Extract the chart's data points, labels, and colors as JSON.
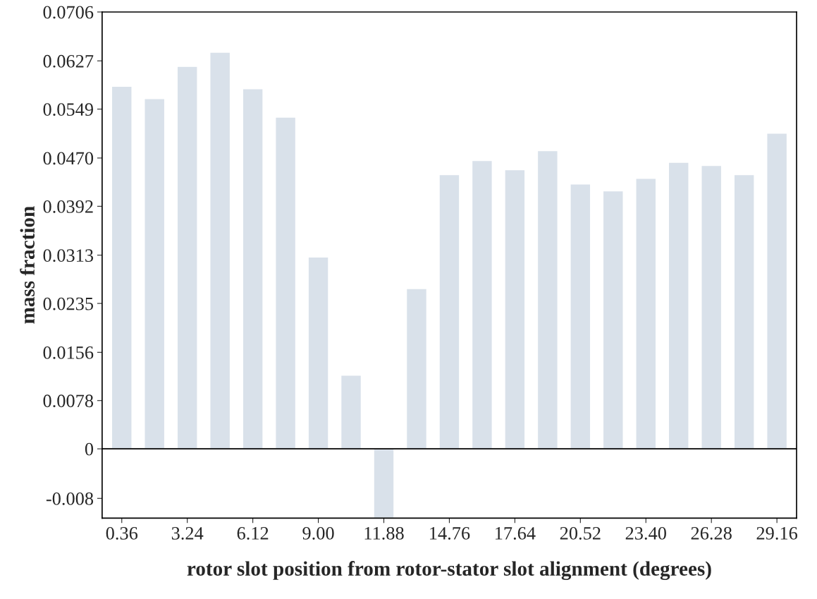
{
  "chart_data": {
    "type": "bar",
    "xlabel": "rotor slot position from rotor-stator slot alignment (degrees)",
    "ylabel": "mass fraction",
    "categories": [
      "0.36",
      null,
      "3.24",
      null,
      "6.12",
      null,
      "9.00",
      null,
      "11.88",
      null,
      "14.76",
      null,
      "17.64",
      null,
      "20.52",
      null,
      "23.40",
      null,
      "26.28",
      null,
      "29.16"
    ],
    "values": [
      0.0586,
      0.0566,
      0.0618,
      0.0641,
      0.0582,
      0.0536,
      0.031,
      0.0119,
      -0.0112,
      0.0259,
      0.0443,
      0.0466,
      0.0451,
      0.0482,
      0.0428,
      0.0417,
      0.0437,
      0.0463,
      0.0458,
      0.0443,
      0.051
    ],
    "color": "#d9e1ea",
    "ylim": [
      -0.0112,
      0.0706
    ],
    "yticks": [
      -0.008,
      0,
      0.0078,
      0.0156,
      0.0235,
      0.0313,
      0.0392,
      {
        "value": 0.047,
        "label": "0.0470"
      },
      0.0549,
      0.0627,
      0.0706
    ],
    "ref_lines": [
      {
        "axis": "y",
        "value": 0,
        "color": "#000000"
      }
    ],
    "grid": false,
    "legend": false
  }
}
